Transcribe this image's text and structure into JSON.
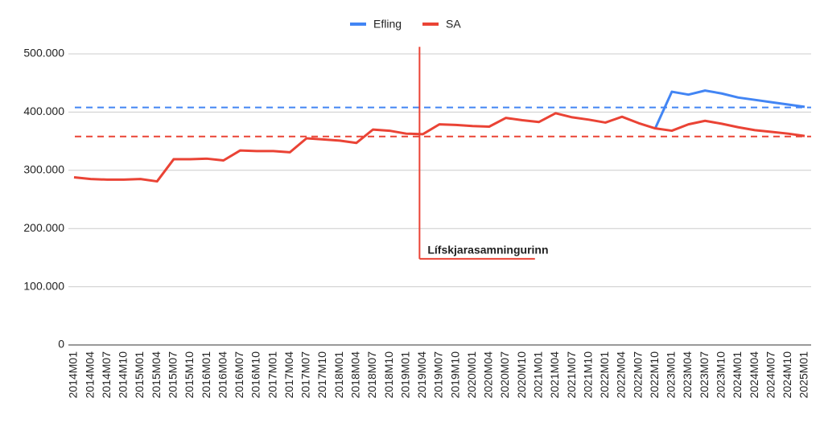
{
  "chart_data": {
    "type": "line",
    "categories": [
      "2014M01",
      "2014M04",
      "2014M07",
      "2014M10",
      "2015M01",
      "2015M04",
      "2015M07",
      "2015M10",
      "2016M01",
      "2016M04",
      "2016M07",
      "2016M10",
      "2017M01",
      "2017M04",
      "2017M07",
      "2017M10",
      "2018M01",
      "2018M04",
      "2018M07",
      "2018M10",
      "2019M01",
      "2019M04",
      "2019M07",
      "2019M10",
      "2020M01",
      "2020M04",
      "2020M07",
      "2020M10",
      "2021M01",
      "2021M04",
      "2021M07",
      "2021M10",
      "2022M01",
      "2022M04",
      "2022M07",
      "2022M10",
      "2023M01",
      "2023M04",
      "2023M07",
      "2023M10",
      "2024M01",
      "2024M04",
      "2024M07",
      "2024M10",
      "2025M01"
    ],
    "series": [
      {
        "name": "Efling",
        "color": "#4285f4",
        "values": [
          null,
          null,
          null,
          null,
          null,
          null,
          null,
          null,
          null,
          null,
          null,
          null,
          null,
          null,
          null,
          null,
          null,
          null,
          null,
          null,
          null,
          null,
          null,
          null,
          null,
          null,
          null,
          null,
          null,
          null,
          null,
          null,
          null,
          null,
          null,
          372000,
          435000,
          430000,
          437000,
          432000,
          425000,
          421000,
          417000,
          413000,
          409000
        ]
      },
      {
        "name": "SA",
        "color": "#ea4335",
        "values": [
          288000,
          285000,
          284000,
          284000,
          285000,
          281000,
          319000,
          319000,
          320000,
          317000,
          334000,
          333000,
          333000,
          331000,
          355000,
          353000,
          351000,
          347000,
          370000,
          368000,
          363000,
          362000,
          379000,
          378000,
          376000,
          375000,
          390000,
          386000,
          383000,
          398000,
          391000,
          387000,
          382000,
          392000,
          381000,
          372000,
          368000,
          379000,
          385000,
          380000,
          374000,
          369000,
          366000,
          363000,
          359000
        ]
      }
    ],
    "reference_lines": [
      {
        "value": 408000,
        "color": "#4285f4"
      },
      {
        "value": 358000,
        "color": "#ea4335"
      }
    ],
    "annotation": {
      "text": "Lífskjarasamningurinn",
      "x": "2019M04",
      "x_end": "2021M01",
      "y": 148000,
      "y_top": 512000,
      "color": "#ea4335"
    },
    "ylim": [
      0,
      500000
    ],
    "yticks": [
      0,
      {
        "value": 100000,
        "label": "100.000"
      },
      {
        "value": 200000,
        "label": "200.000"
      },
      {
        "value": 300000,
        "label": "300.000"
      },
      {
        "value": 400000,
        "label": "400.000"
      },
      {
        "value": 500000,
        "label": "500.000"
      }
    ],
    "grid": true,
    "legend": "top"
  }
}
